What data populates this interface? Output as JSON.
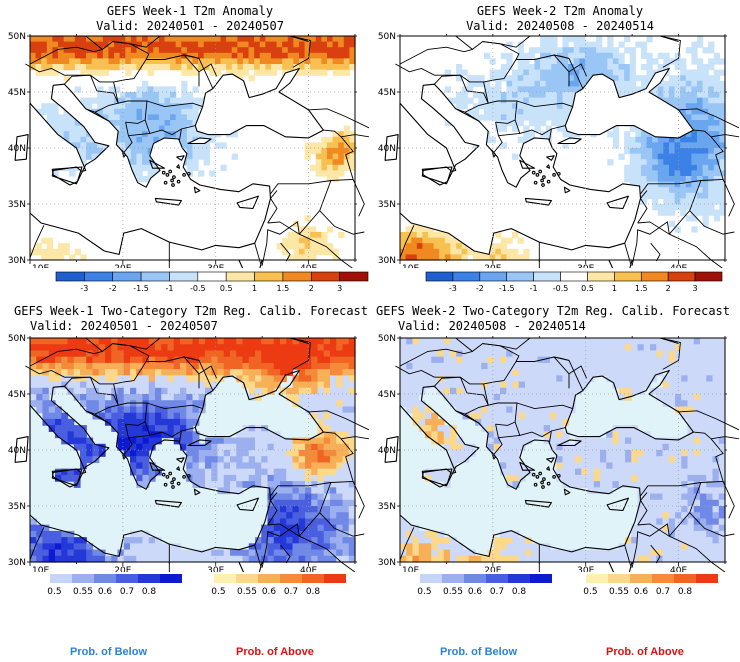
{
  "panels": [
    {
      "title": "GEFS Week-1 T2m Anomaly",
      "valid": "Valid: 20240501 - 20240507",
      "kind": "anom",
      "seed": 11
    },
    {
      "title": "GEFS Week-2 T2m Anomaly",
      "valid": "Valid: 20240508 - 20240514",
      "kind": "anom",
      "seed": 23
    },
    {
      "title": "GEFS Week-1 Two-Category T2m Reg. Calib. Forecast",
      "valid": "Valid: 20240501 - 20240507",
      "kind": "prob",
      "seed": 37
    },
    {
      "title": "GEFS Week-2 Two-Category T2m Reg. Calib. Forecast",
      "valid": "Valid: 20240508 - 20240514",
      "kind": "prob",
      "seed": 53
    }
  ],
  "axes": {
    "lat_labels": [
      "50N",
      "45N",
      "40N",
      "35N",
      "30N"
    ],
    "lon_labels": [
      "10E",
      "20E",
      "30E",
      "40E"
    ],
    "lat_range": [
      30,
      50
    ],
    "lon_range": [
      10,
      45
    ]
  },
  "anom_colorbar": {
    "labels": [
      "-3",
      "-2",
      "-1.5",
      "-1",
      "-0.5",
      "0.5",
      "1",
      "1.5",
      "2",
      "3"
    ],
    "colors": [
      "#1e60d0",
      "#3c82e6",
      "#6aa6f0",
      "#9ac6f6",
      "#c8e2fa",
      "#ffffff",
      "#fde7a6",
      "#f8c050",
      "#f08a20",
      "#d84010",
      "#a01008"
    ]
  },
  "prob_below_colorbar": {
    "labels": [
      "0.5",
      "0.55",
      "0.6",
      "0.7",
      "0.8"
    ],
    "colors": [
      "#c6d4f8",
      "#9cb0f0",
      "#7088e6",
      "#4a5ee0",
      "#2438d8",
      "#0c1ad0"
    ]
  },
  "prob_above_colorbar": {
    "labels": [
      "0.5",
      "0.55",
      "0.6",
      "0.7",
      "0.8"
    ],
    "colors": [
      "#fff0b0",
      "#fcd88a",
      "#f8b058",
      "#f48a3a",
      "#f06424",
      "#ec3a12"
    ]
  },
  "footer": {
    "below": "Prob. of Below",
    "above": "Prob. of Above"
  },
  "colors": {
    "water": "#dff3f9",
    "land_anom": "#ffffff",
    "land_prob": "#cdd9f8"
  }
}
